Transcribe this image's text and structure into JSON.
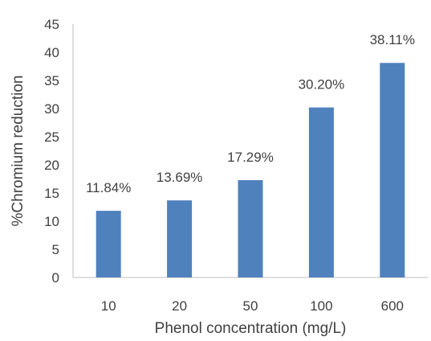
{
  "chart_data": {
    "type": "bar",
    "categories": [
      "10",
      "20",
      "50",
      "100",
      "600"
    ],
    "values": [
      11.84,
      13.69,
      17.29,
      30.2,
      38.11
    ],
    "data_labels": [
      "11.84%",
      "13.69%",
      "17.29%",
      "30.20%",
      "38.11%"
    ],
    "xlabel": "Phenol concentration (mg/L)",
    "ylabel": "%Chromium reduction",
    "ylim": [
      0,
      45
    ],
    "yticks": [
      0,
      5,
      10,
      15,
      20,
      25,
      30,
      35,
      40,
      45
    ],
    "grid": false,
    "legend": "none",
    "bar_color": "#4f81bd"
  }
}
